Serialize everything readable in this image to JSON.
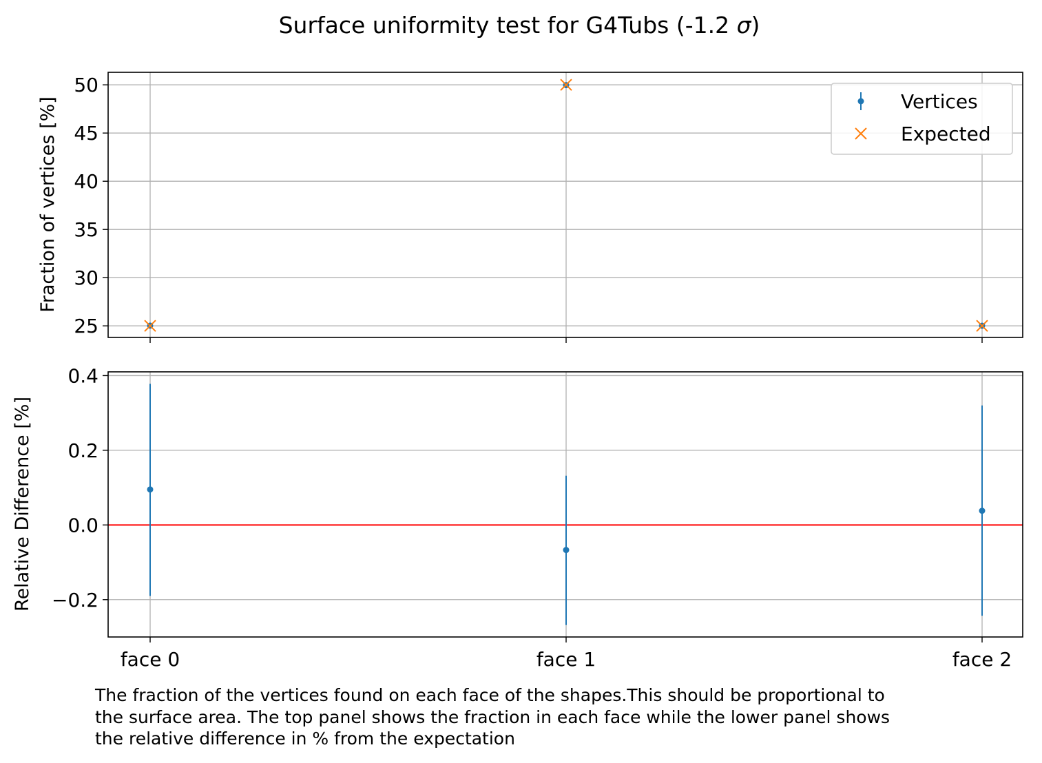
{
  "chart_data": {
    "title": "Surface uniformity test for G4Tubs (-1.2 σ)",
    "title_prefix": "Surface uniformity test for G4Tubs (-1.2 ",
    "title_sigma": "σ",
    "title_suffix": ")",
    "categories": [
      "face 0",
      "face 1",
      "face 2"
    ],
    "grid": true,
    "caption": "The fraction of the vertices found on each face of the shapes.This should be proportional to the surface area. The top panel shows the fraction in each face while the lower panel shows the relative difference in % from the expectation",
    "caption_lines": [
      "The fraction of the vertices found on each face of the shapes.This should be proportional to",
      "the surface area. The top panel shows the fraction in each face while the lower panel shows",
      "the relative difference in % from the expectation"
    ],
    "panels": [
      {
        "type": "scatter",
        "ylabel": "Fraction of vertices [%]",
        "ylim": [
          23.8,
          51.3
        ],
        "yticks": [
          25,
          30,
          35,
          40,
          45,
          50
        ],
        "legend_position": "top-right",
        "series": [
          {
            "name": "Vertices",
            "marker": "errorbar-dot",
            "color": "#1f77b4",
            "values": [
              25.02,
              49.97,
              25.01
            ],
            "errors": [
              0.07,
              0.1,
              0.07
            ]
          },
          {
            "name": "Expected",
            "marker": "x",
            "color": "#ff7f0e",
            "values": [
              25.0,
              50.0,
              25.0
            ]
          }
        ]
      },
      {
        "type": "scatter",
        "ylabel": "Relative Difference [%]",
        "ylim": [
          -0.3,
          0.41
        ],
        "yticks": [
          -0.2,
          0.0,
          0.2,
          0.4
        ],
        "ytick_labels": [
          "−0.2",
          "0.0",
          "0.2",
          "0.4"
        ],
        "reference_line": {
          "y": 0.0,
          "color": "#ff0000"
        },
        "series": [
          {
            "name": "Vertices",
            "color": "#1f77b4",
            "values": [
              0.095,
              -0.067,
              0.038
            ],
            "err_low": [
              -0.19,
              -0.268,
              -0.243
            ],
            "err_high": [
              0.378,
              0.132,
              0.32
            ]
          }
        ]
      }
    ]
  }
}
